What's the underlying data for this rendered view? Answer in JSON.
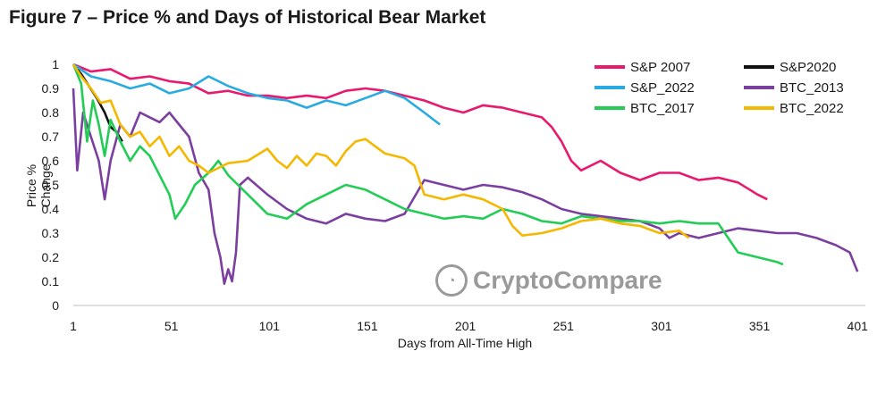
{
  "figure": {
    "title": "Figure 7 – Price % and Days of Historical Bear Market"
  },
  "watermark": {
    "text": "CryptoCompare",
    "icon": "cryptocompare-logo-icon"
  },
  "chart_data": {
    "type": "line",
    "title": "",
    "xlabel": "Days from All-Time High",
    "ylabel": "Price % Change",
    "xlim": [
      1,
      405
    ],
    "ylim": [
      0,
      1
    ],
    "xticks": [
      "1",
      "51",
      "101",
      "151",
      "201",
      "251",
      "301",
      "351",
      "401"
    ],
    "yticks": [
      "0",
      "0.1",
      "0.2",
      "0.3",
      "0.4",
      "0.5",
      "0.6",
      "0.7",
      "0.8",
      "0.9",
      "1"
    ],
    "grid": false,
    "legend_position": "top-right",
    "series": [
      {
        "name": "S&P 2007",
        "color": "#e8196e",
        "points": [
          [
            1,
            1
          ],
          [
            10,
            0.97
          ],
          [
            20,
            0.98
          ],
          [
            30,
            0.94
          ],
          [
            40,
            0.95
          ],
          [
            50,
            0.93
          ],
          [
            60,
            0.92
          ],
          [
            70,
            0.88
          ],
          [
            80,
            0.89
          ],
          [
            90,
            0.87
          ],
          [
            100,
            0.87
          ],
          [
            110,
            0.86
          ],
          [
            120,
            0.87
          ],
          [
            130,
            0.86
          ],
          [
            140,
            0.89
          ],
          [
            150,
            0.9
          ],
          [
            160,
            0.89
          ],
          [
            170,
            0.87
          ],
          [
            180,
            0.85
          ],
          [
            190,
            0.82
          ],
          [
            200,
            0.8
          ],
          [
            210,
            0.83
          ],
          [
            220,
            0.82
          ],
          [
            230,
            0.8
          ],
          [
            240,
            0.78
          ],
          [
            245,
            0.74
          ],
          [
            250,
            0.68
          ],
          [
            255,
            0.6
          ],
          [
            260,
            0.56
          ],
          [
            270,
            0.6
          ],
          [
            280,
            0.55
          ],
          [
            290,
            0.52
          ],
          [
            300,
            0.55
          ],
          [
            310,
            0.55
          ],
          [
            320,
            0.52
          ],
          [
            330,
            0.53
          ],
          [
            340,
            0.51
          ],
          [
            350,
            0.46
          ],
          [
            355,
            0.44
          ]
        ]
      },
      {
        "name": "S&P2020",
        "color": "#111111",
        "points": [
          [
            1,
            1
          ],
          [
            5,
            0.96
          ],
          [
            9,
            0.91
          ],
          [
            13,
            0.86
          ],
          [
            17,
            0.8
          ],
          [
            20,
            0.74
          ],
          [
            23,
            0.72
          ],
          [
            26,
            0.68
          ]
        ]
      },
      {
        "name": "S&P_2022",
        "color": "#29abe2",
        "points": [
          [
            1,
            1
          ],
          [
            10,
            0.95
          ],
          [
            20,
            0.93
          ],
          [
            30,
            0.9
          ],
          [
            40,
            0.92
          ],
          [
            50,
            0.88
          ],
          [
            60,
            0.9
          ],
          [
            70,
            0.95
          ],
          [
            80,
            0.91
          ],
          [
            90,
            0.88
          ],
          [
            100,
            0.86
          ],
          [
            110,
            0.85
          ],
          [
            120,
            0.82
          ],
          [
            130,
            0.85
          ],
          [
            140,
            0.83
          ],
          [
            150,
            0.86
          ],
          [
            160,
            0.89
          ],
          [
            170,
            0.86
          ],
          [
            180,
            0.8
          ],
          [
            188,
            0.75
          ]
        ]
      },
      {
        "name": "BTC_2013",
        "color": "#7b3fa0",
        "points": [
          [
            1,
            0.9
          ],
          [
            3,
            0.56
          ],
          [
            6,
            0.8
          ],
          [
            10,
            0.7
          ],
          [
            14,
            0.6
          ],
          [
            17,
            0.44
          ],
          [
            20,
            0.6
          ],
          [
            25,
            0.75
          ],
          [
            30,
            0.7
          ],
          [
            35,
            0.8
          ],
          [
            40,
            0.78
          ],
          [
            45,
            0.76
          ],
          [
            50,
            0.8
          ],
          [
            55,
            0.75
          ],
          [
            60,
            0.7
          ],
          [
            65,
            0.55
          ],
          [
            70,
            0.48
          ],
          [
            73,
            0.3
          ],
          [
            76,
            0.2
          ],
          [
            78,
            0.09
          ],
          [
            80,
            0.15
          ],
          [
            82,
            0.1
          ],
          [
            84,
            0.22
          ],
          [
            86,
            0.5
          ],
          [
            90,
            0.53
          ],
          [
            100,
            0.46
          ],
          [
            110,
            0.4
          ],
          [
            120,
            0.36
          ],
          [
            130,
            0.34
          ],
          [
            140,
            0.38
          ],
          [
            150,
            0.36
          ],
          [
            160,
            0.35
          ],
          [
            170,
            0.38
          ],
          [
            175,
            0.45
          ],
          [
            180,
            0.52
          ],
          [
            190,
            0.5
          ],
          [
            200,
            0.48
          ],
          [
            210,
            0.5
          ],
          [
            220,
            0.49
          ],
          [
            230,
            0.47
          ],
          [
            240,
            0.44
          ],
          [
            250,
            0.4
          ],
          [
            260,
            0.38
          ],
          [
            270,
            0.37
          ],
          [
            280,
            0.36
          ],
          [
            290,
            0.35
          ],
          [
            300,
            0.32
          ],
          [
            305,
            0.28
          ],
          [
            310,
            0.3
          ],
          [
            320,
            0.28
          ],
          [
            330,
            0.3
          ],
          [
            340,
            0.32
          ],
          [
            350,
            0.31
          ],
          [
            360,
            0.3
          ],
          [
            370,
            0.3
          ],
          [
            380,
            0.28
          ],
          [
            390,
            0.25
          ],
          [
            397,
            0.22
          ],
          [
            401,
            0.14
          ]
        ]
      },
      {
        "name": "BTC_2017",
        "color": "#22cc55",
        "points": [
          [
            1,
            1
          ],
          [
            5,
            0.92
          ],
          [
            8,
            0.68
          ],
          [
            11,
            0.85
          ],
          [
            14,
            0.75
          ],
          [
            17,
            0.62
          ],
          [
            20,
            0.77
          ],
          [
            25,
            0.68
          ],
          [
            30,
            0.6
          ],
          [
            35,
            0.66
          ],
          [
            40,
            0.62
          ],
          [
            45,
            0.54
          ],
          [
            50,
            0.46
          ],
          [
            53,
            0.36
          ],
          [
            58,
            0.42
          ],
          [
            63,
            0.5
          ],
          [
            70,
            0.55
          ],
          [
            75,
            0.6
          ],
          [
            80,
            0.54
          ],
          [
            85,
            0.5
          ],
          [
            90,
            0.46
          ],
          [
            95,
            0.42
          ],
          [
            100,
            0.38
          ],
          [
            110,
            0.36
          ],
          [
            120,
            0.42
          ],
          [
            130,
            0.46
          ],
          [
            140,
            0.5
          ],
          [
            150,
            0.48
          ],
          [
            160,
            0.44
          ],
          [
            170,
            0.4
          ],
          [
            180,
            0.38
          ],
          [
            190,
            0.36
          ],
          [
            200,
            0.37
          ],
          [
            210,
            0.36
          ],
          [
            220,
            0.4
          ],
          [
            230,
            0.38
          ],
          [
            240,
            0.35
          ],
          [
            250,
            0.34
          ],
          [
            260,
            0.37
          ],
          [
            270,
            0.36
          ],
          [
            280,
            0.35
          ],
          [
            290,
            0.35
          ],
          [
            300,
            0.34
          ],
          [
            310,
            0.35
          ],
          [
            320,
            0.34
          ],
          [
            330,
            0.34
          ],
          [
            335,
            0.28
          ],
          [
            340,
            0.22
          ],
          [
            350,
            0.2
          ],
          [
            360,
            0.18
          ],
          [
            363,
            0.17
          ]
        ]
      },
      {
        "name": "BTC_2022",
        "color": "#f5b800",
        "points": [
          [
            1,
            1
          ],
          [
            5,
            0.95
          ],
          [
            10,
            0.9
          ],
          [
            15,
            0.84
          ],
          [
            20,
            0.85
          ],
          [
            25,
            0.75
          ],
          [
            30,
            0.7
          ],
          [
            35,
            0.72
          ],
          [
            40,
            0.66
          ],
          [
            45,
            0.7
          ],
          [
            50,
            0.62
          ],
          [
            55,
            0.66
          ],
          [
            60,
            0.6
          ],
          [
            65,
            0.58
          ],
          [
            70,
            0.55
          ],
          [
            75,
            0.57
          ],
          [
            80,
            0.59
          ],
          [
            90,
            0.6
          ],
          [
            100,
            0.65
          ],
          [
            105,
            0.6
          ],
          [
            110,
            0.57
          ],
          [
            115,
            0.62
          ],
          [
            120,
            0.58
          ],
          [
            125,
            0.63
          ],
          [
            130,
            0.62
          ],
          [
            135,
            0.58
          ],
          [
            140,
            0.64
          ],
          [
            145,
            0.68
          ],
          [
            150,
            0.69
          ],
          [
            155,
            0.66
          ],
          [
            160,
            0.63
          ],
          [
            170,
            0.61
          ],
          [
            175,
            0.58
          ],
          [
            180,
            0.46
          ],
          [
            190,
            0.44
          ],
          [
            200,
            0.46
          ],
          [
            210,
            0.44
          ],
          [
            220,
            0.4
          ],
          [
            225,
            0.33
          ],
          [
            230,
            0.29
          ],
          [
            240,
            0.3
          ],
          [
            250,
            0.32
          ],
          [
            260,
            0.35
          ],
          [
            270,
            0.36
          ],
          [
            280,
            0.34
          ],
          [
            290,
            0.33
          ],
          [
            300,
            0.3
          ],
          [
            310,
            0.31
          ],
          [
            315,
            0.28
          ]
        ]
      }
    ]
  }
}
